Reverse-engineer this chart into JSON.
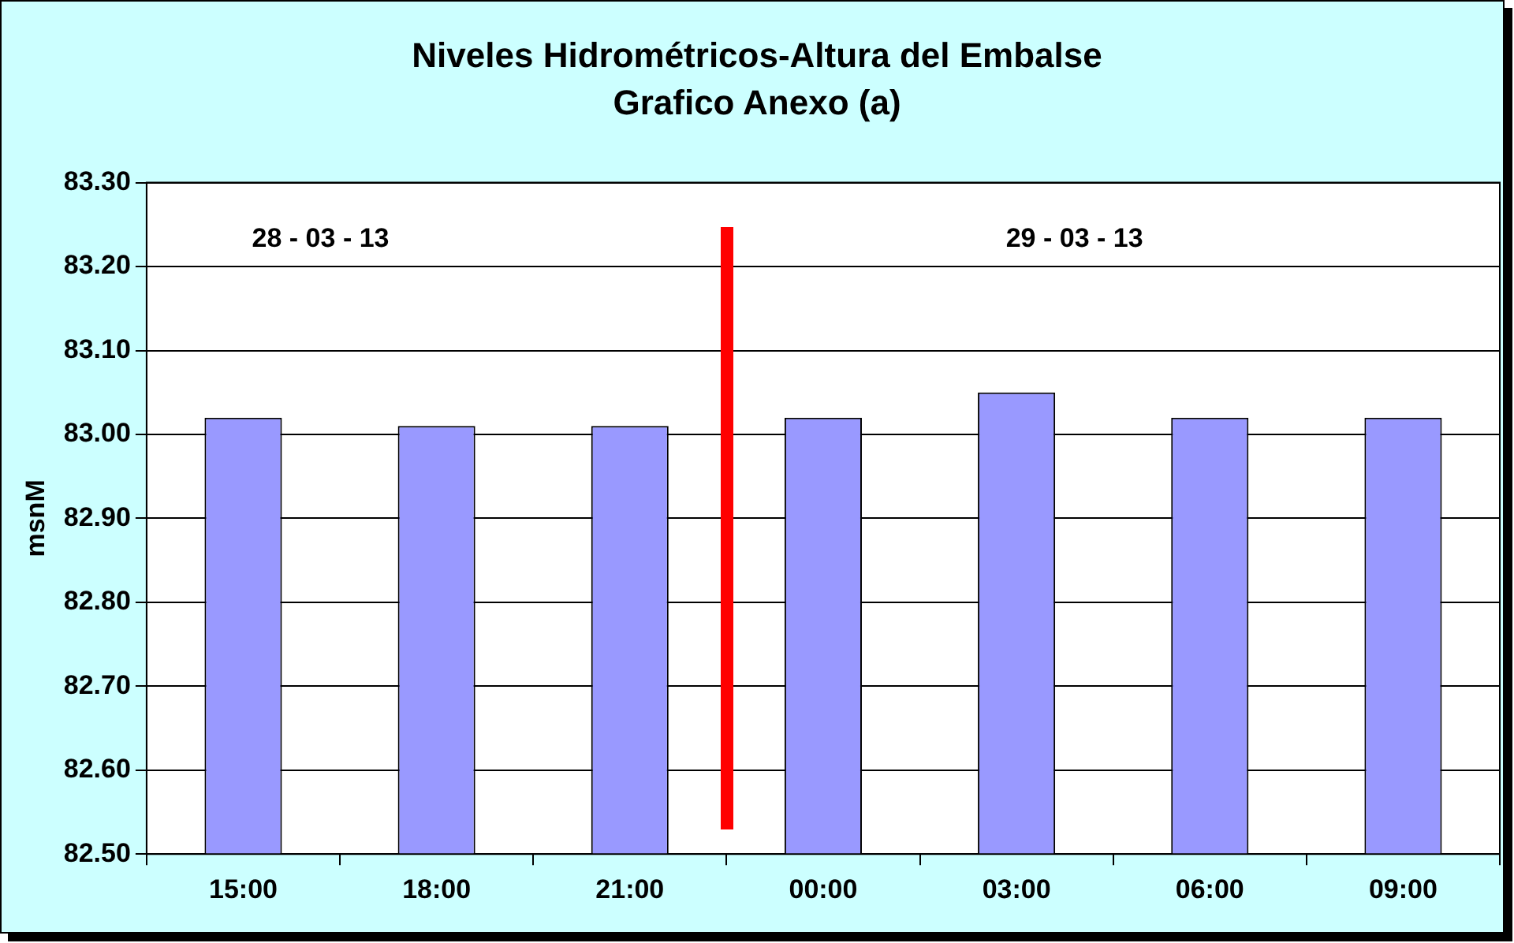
{
  "chart_data": {
    "type": "bar",
    "title": "Niveles Hidrométricos-Altura del Embalse",
    "subtitle": "Grafico Anexo (a)",
    "ylabel": "msnM",
    "categories": [
      "15:00",
      "18:00",
      "21:00",
      "00:00",
      "03:00",
      "06:00",
      "09:00"
    ],
    "values": [
      83.02,
      83.01,
      83.01,
      83.02,
      83.05,
      83.02,
      83.02
    ],
    "color": "#9999ff",
    "ylim": [
      82.5,
      83.3
    ],
    "yticks": [
      {
        "value": 82.5,
        "label": "82.50"
      },
      {
        "value": 82.6,
        "label": "82.60"
      },
      {
        "value": 82.7,
        "label": "82.70"
      },
      {
        "value": 82.8,
        "label": "82.80"
      },
      {
        "value": 82.9,
        "label": "82.90"
      },
      {
        "value": 83.0,
        "label": "83.00"
      },
      {
        "value": 83.1,
        "label": "83.10"
      },
      {
        "value": 83.2,
        "label": "83.20"
      },
      {
        "value": 83.3,
        "label": "83.30"
      }
    ],
    "grid": "y",
    "legend": false,
    "annotations": [
      "28 - 03 - 13",
      "29 - 03 - 13"
    ]
  }
}
